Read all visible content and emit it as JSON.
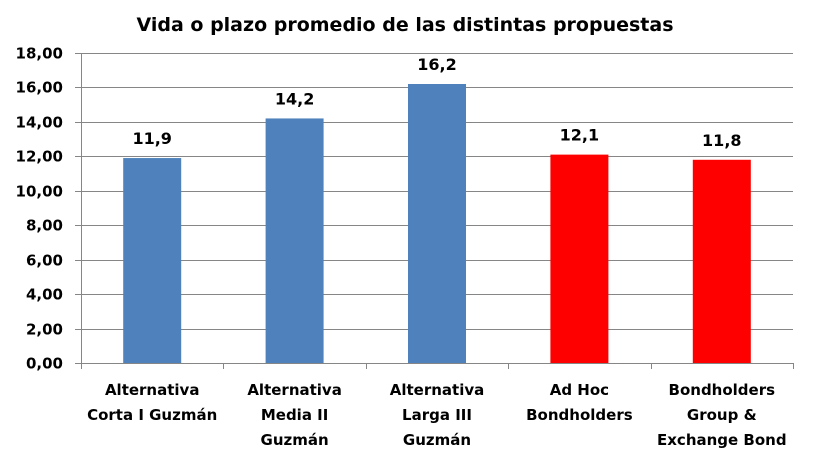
{
  "chart_data": {
    "type": "bar",
    "title": "Vida o plazo promedio de las distintas propuestas",
    "xlabel": "",
    "ylabel": "",
    "ylim": [
      0,
      18
    ],
    "yticks": [
      "0,00",
      "2,00",
      "4,00",
      "6,00",
      "8,00",
      "10,00",
      "12,00",
      "14,00",
      "16,00",
      "18,00"
    ],
    "ytick_values": [
      0,
      2,
      4,
      6,
      8,
      10,
      12,
      14,
      16,
      18
    ],
    "grid": true,
    "legend": null,
    "categories": [
      [
        "Alternativa",
        "Corta I Guzmán"
      ],
      [
        "Alternativa",
        "Media II",
        "Guzmán"
      ],
      [
        "Alternativa",
        "Larga III",
        "Guzmán"
      ],
      [
        "Ad Hoc",
        "Bondholders"
      ],
      [
        "Bondholders",
        "Group &",
        "Exchange Bond"
      ]
    ],
    "category_names": [
      "Alternativa Corta I Guzmán",
      "Alternativa Media II Guzmán",
      "Alternativa Larga III Guzmán",
      "Ad Hoc Bondholders",
      "Bondholders Group & Exchange Bond"
    ],
    "values": [
      11.9,
      14.2,
      16.2,
      12.1,
      11.8
    ],
    "data_labels": [
      "11,9",
      "14,2",
      "16,2",
      "12,1",
      "11,8"
    ],
    "bar_colors": [
      "#4f81bd",
      "#4f81bd",
      "#4f81bd",
      "#ff0000",
      "#ff0000"
    ]
  },
  "colors": {
    "grid": "#868686",
    "background": "#ffffff",
    "text": "#000000"
  }
}
